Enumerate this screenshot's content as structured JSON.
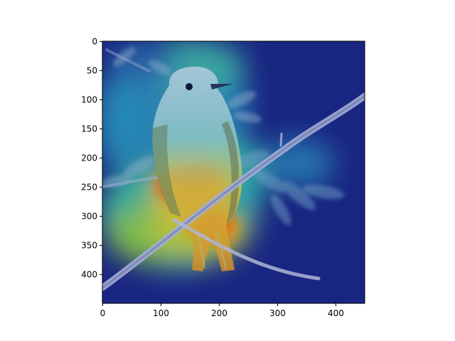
{
  "figure": {
    "image_size": [
      450,
      450
    ],
    "colormap": "jet",
    "subject": "bird perched on thin branch with leaves, overlaid with heatmap",
    "colors": {
      "heat_low": "#1a2a8f",
      "heat_mid": "#2fb7b0",
      "heat_high": "#ff3a00",
      "axis": "#000000",
      "background": "#ffffff"
    }
  },
  "axes": {
    "x_ticks": [
      {
        "value": 0,
        "label": "0"
      },
      {
        "value": 100,
        "label": "100"
      },
      {
        "value": 200,
        "label": "200"
      },
      {
        "value": 300,
        "label": "300"
      },
      {
        "value": 400,
        "label": "400"
      }
    ],
    "y_ticks": [
      {
        "value": 0,
        "label": "0"
      },
      {
        "value": 50,
        "label": "50"
      },
      {
        "value": 100,
        "label": "100"
      },
      {
        "value": 150,
        "label": "150"
      },
      {
        "value": 200,
        "label": "200"
      },
      {
        "value": 250,
        "label": "250"
      },
      {
        "value": 300,
        "label": "300"
      },
      {
        "value": 350,
        "label": "350"
      },
      {
        "value": 400,
        "label": "400"
      }
    ]
  }
}
